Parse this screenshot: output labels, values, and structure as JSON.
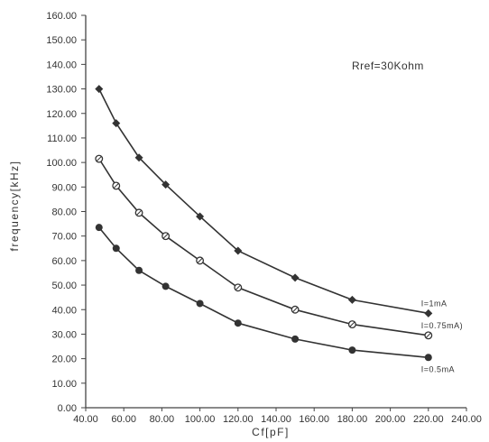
{
  "chart_data": {
    "type": "line",
    "xlabel": "Cf[pF]",
    "ylabel": "frequency[kHz]",
    "xlim": [
      40,
      240
    ],
    "ylim": [
      0,
      160
    ],
    "x_ticks": [
      "40.00",
      "60.00",
      "80.00",
      "100.00",
      "120.00",
      "140.00",
      "160.00",
      "180.00",
      "200.00",
      "220.00",
      "240.00"
    ],
    "y_ticks": [
      "0.00",
      "10.00",
      "20.00",
      "30.00",
      "40.00",
      "50.00",
      "60.00",
      "70.00",
      "80.00",
      "90.00",
      "100.00",
      "110.00",
      "120.00",
      "130.00",
      "140.00",
      "150.00",
      "160.00"
    ],
    "annotation": "Rref=30Kohm",
    "grid": false,
    "x": [
      47,
      56,
      68,
      82,
      100,
      120,
      150,
      180,
      220
    ],
    "series": [
      {
        "name": "I=1mA",
        "marker": "diamond",
        "values": [
          130,
          116,
          102,
          91,
          78,
          64,
          53,
          44,
          38.5
        ]
      },
      {
        "name": "I=0.75mA)",
        "marker": "open-circle",
        "values": [
          101.5,
          90.5,
          79.5,
          70,
          60,
          49,
          40,
          34,
          29.5
        ]
      },
      {
        "name": "I=0.5mA",
        "marker": "filled-circle",
        "values": [
          73.5,
          65,
          56,
          49.5,
          42.5,
          34.5,
          28,
          23.5,
          20.5
        ]
      }
    ],
    "colors": {
      "line": "#333333",
      "axis": "#444444"
    }
  }
}
